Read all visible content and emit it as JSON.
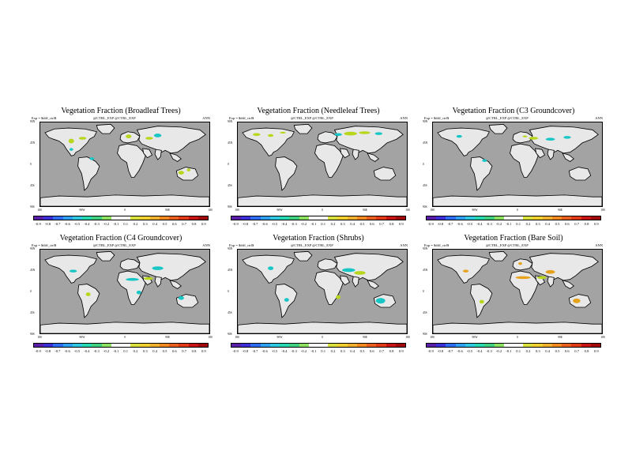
{
  "panels": [
    {
      "title": "Vegetation Fraction (Broadleaf Trees)",
      "left_label": "Exp = $diff_ctrl$",
      "mid_label": "@CTRL_EXP @CTRL_EXP",
      "right_label": "ANN",
      "patch_color": "#b9d51c",
      "patch_color2": "#18c6c6"
    },
    {
      "title": "Vegetation Fraction (Needleleaf Trees)",
      "left_label": "Exp = $diff_ctrl$",
      "mid_label": "@CTRL_EXP @CTRL_EXP",
      "right_label": "ANN",
      "patch_color": "#b9d51c",
      "patch_color2": "#18c6c6"
    },
    {
      "title": "Vegetation Fraction (C3 Groundcover)",
      "left_label": "Exp = $diff_ctrl$",
      "mid_label": "@CTRL_EXP @CTRL_EXP",
      "right_label": "ANN",
      "patch_color": "#18c6c6",
      "patch_color2": "#b9d51c"
    },
    {
      "title": "Vegetation Fraction (C4 Groundcover)",
      "left_label": "Exp = $diff_ctrl$",
      "mid_label": "@CTRL_EXP @CTRL_EXP",
      "right_label": "ANN",
      "patch_color": "#18c6c6",
      "patch_color2": "#b9d51c"
    },
    {
      "title": "Vegetation Fraction (Shrubs)",
      "left_label": "Exp = $diff_ctrl$",
      "mid_label": "@CTRL_EXP @CTRL_EXP",
      "right_label": "ANN",
      "patch_color": "#18c6c6",
      "patch_color2": "#b9d51c"
    },
    {
      "title": "Vegetation Fraction (Bare Soil)",
      "left_label": "Exp = $diff_ctrl$",
      "mid_label": "@CTRL_EXP @CTRL_EXP",
      "right_label": "ANN",
      "patch_color": "#e6a21a",
      "patch_color2": "#b9d51c"
    }
  ],
  "lat_labels": [
    "90N",
    "45N",
    "0",
    "45S",
    "90S"
  ],
  "lon_labels": [
    "180",
    "90W",
    "0",
    "90E",
    "180"
  ],
  "colorbar": {
    "labels": [
      "-0.9",
      "-0.8",
      "-0.7",
      "-0.6",
      "-0.5",
      "-0.4",
      "-0.3",
      "-0.2",
      "-0.1",
      "0.1",
      "0.2",
      "0.3",
      "0.4",
      "0.5",
      "0.6",
      "0.7",
      "0.8",
      "0.9"
    ],
    "colors": [
      "#5a1fa8",
      "#3d2fd8",
      "#2f6cf0",
      "#2fa0f0",
      "#30c8e0",
      "#28d8b0",
      "#40d080",
      "#8ee060",
      "#ffffff",
      "#ffffff",
      "#d8e040",
      "#f0d030",
      "#f0b030",
      "#f08a20",
      "#e86020",
      "#e03a18",
      "#c81414",
      "#a00a0a"
    ]
  },
  "colors": {
    "ocean": "#a3a3a3",
    "land": "#e8e8e8",
    "coast": "#000000"
  }
}
